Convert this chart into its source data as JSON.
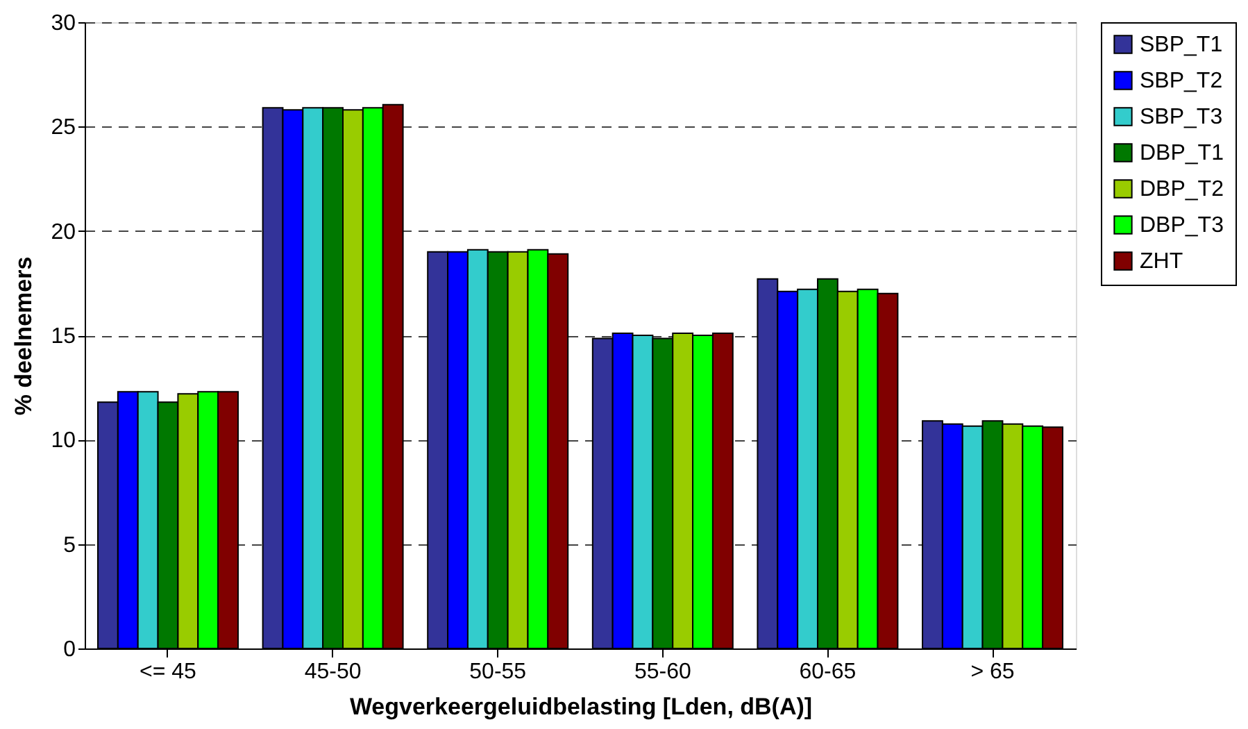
{
  "chart_data": {
    "type": "bar",
    "xlabel": "Wegverkeergeluidbelasting [Lden, dB(A)]",
    "ylabel": "% deelnemers",
    "categories": [
      "<= 45",
      "45-50",
      "50-55",
      "55-60",
      "60-65",
      "> 65"
    ],
    "series": [
      {
        "name": "SBP_T1",
        "color": "#333399",
        "values": [
          11.8,
          25.9,
          19.0,
          14.85,
          17.7,
          10.9
        ]
      },
      {
        "name": "SBP_T2",
        "color": "#0000ff",
        "values": [
          12.3,
          25.8,
          19.0,
          15.1,
          17.1,
          10.75
        ]
      },
      {
        "name": "SBP_T3",
        "color": "#33cccc",
        "values": [
          12.3,
          25.9,
          19.1,
          15.0,
          17.2,
          10.65
        ]
      },
      {
        "name": "DBP_T1",
        "color": "#007800",
        "values": [
          11.8,
          25.9,
          19.0,
          14.85,
          17.7,
          10.9
        ]
      },
      {
        "name": "DBP_T2",
        "color": "#99cc00",
        "values": [
          12.2,
          25.8,
          19.0,
          15.1,
          17.1,
          10.75
        ]
      },
      {
        "name": "DBP_T3",
        "color": "#00ff00",
        "values": [
          12.3,
          25.9,
          19.1,
          15.0,
          17.2,
          10.65
        ]
      },
      {
        "name": "ZHT",
        "color": "#800000",
        "values": [
          12.3,
          26.05,
          18.9,
          15.1,
          17.0,
          10.6
        ]
      }
    ],
    "ylim": [
      0,
      30
    ],
    "yticks": [
      0,
      5,
      10,
      15,
      20,
      25,
      30
    ],
    "grid": "y",
    "legend": "right"
  }
}
